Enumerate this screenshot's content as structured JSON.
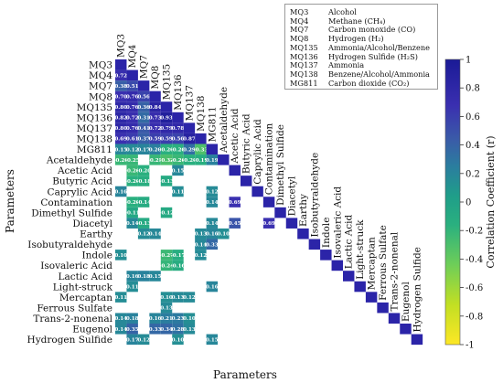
{
  "chart_data": {
    "type": "heatmap",
    "title": "",
    "xlabel": "Parameters",
    "ylabel": "Parameters",
    "parameters": [
      "MQ3",
      "MQ4",
      "MQ7",
      "MQ8",
      "MQ135",
      "MQ136",
      "MQ137",
      "MQ138",
      "MG811",
      "Acetaldehyde",
      "Acetic Acid",
      "Butyric Acid",
      "Caprylic Acid",
      "Contamination",
      "Dimethyl Sulfide",
      "Diacetyl",
      "Earthy",
      "Isobutyraldehyde",
      "Indole",
      "Isovaleric Acid",
      "Lactic Acid",
      "Light-struck",
      "Mercaptan",
      "Ferrous Sulfate",
      "Trans-2-nonenal",
      "Eugenol",
      "Hydrogen Sulfide"
    ],
    "cells": [
      {
        "row": 1,
        "col": 0,
        "value": 0.72
      },
      {
        "row": 2,
        "col": 0,
        "value": 0.38
      },
      {
        "row": 2,
        "col": 1,
        "value": 0.51
      },
      {
        "row": 3,
        "col": 0,
        "value": 0.7
      },
      {
        "row": 3,
        "col": 1,
        "value": 0.76
      },
      {
        "row": 3,
        "col": 2,
        "value": 0.56
      },
      {
        "row": 4,
        "col": 0,
        "value": 0.8
      },
      {
        "row": 4,
        "col": 1,
        "value": 0.76
      },
      {
        "row": 4,
        "col": 2,
        "value": 0.36
      },
      {
        "row": 4,
        "col": 3,
        "value": 0.84
      },
      {
        "row": 5,
        "col": 0,
        "value": 0.82
      },
      {
        "row": 5,
        "col": 1,
        "value": 0.72
      },
      {
        "row": 5,
        "col": 2,
        "value": 0.31
      },
      {
        "row": 5,
        "col": 3,
        "value": 0.73
      },
      {
        "row": 5,
        "col": 4,
        "value": 0.93
      },
      {
        "row": 6,
        "col": 0,
        "value": 0.8
      },
      {
        "row": 6,
        "col": 1,
        "value": 0.76
      },
      {
        "row": 6,
        "col": 2,
        "value": 0.41
      },
      {
        "row": 6,
        "col": 3,
        "value": 0.72
      },
      {
        "row": 6,
        "col": 4,
        "value": 0.79
      },
      {
        "row": 6,
        "col": 5,
        "value": 0.78
      },
      {
        "row": 7,
        "col": 0,
        "value": 0.69
      },
      {
        "row": 7,
        "col": 1,
        "value": 0.61
      },
      {
        "row": 7,
        "col": 2,
        "value": 0.37
      },
      {
        "row": 7,
        "col": 3,
        "value": 0.59
      },
      {
        "row": 7,
        "col": 4,
        "value": 0.59
      },
      {
        "row": 7,
        "col": 5,
        "value": 0.56
      },
      {
        "row": 7,
        "col": 6,
        "value": 0.87
      },
      {
        "row": 8,
        "col": 0,
        "value": 0.15
      },
      {
        "row": 8,
        "col": 1,
        "value": 0.12
      },
      {
        "row": 8,
        "col": 2,
        "value": 0.17
      },
      {
        "row": 8,
        "col": 3,
        "value": 0.2
      },
      {
        "row": 8,
        "col": 4,
        "value": -0.2
      },
      {
        "row": 8,
        "col": 5,
        "value": -0.2
      },
      {
        "row": 8,
        "col": 6,
        "value": 0.29
      },
      {
        "row": 8,
        "col": 7,
        "value": -0.33
      },
      {
        "row": 9,
        "col": 0,
        "value": -0.26
      },
      {
        "row": 9,
        "col": 1,
        "value": -0.25
      },
      {
        "row": 9,
        "col": 3,
        "value": -0.25
      },
      {
        "row": 9,
        "col": 4,
        "value": -0.32
      },
      {
        "row": 9,
        "col": 5,
        "value": -0.26
      },
      {
        "row": 9,
        "col": 6,
        "value": -0.2
      },
      {
        "row": 9,
        "col": 7,
        "value": -0.19
      },
      {
        "row": 9,
        "col": 8,
        "value": 0.19
      },
      {
        "row": 10,
        "col": 1,
        "value": -0.26
      },
      {
        "row": 10,
        "col": 2,
        "value": -0.2
      },
      {
        "row": 10,
        "col": 5,
        "value": 0.15
      },
      {
        "row": 11,
        "col": 1,
        "value": -0.2
      },
      {
        "row": 11,
        "col": 2,
        "value": -0.18
      },
      {
        "row": 11,
        "col": 4,
        "value": -0.13
      },
      {
        "row": 12,
        "col": 0,
        "value": 0.16
      },
      {
        "row": 12,
        "col": 5,
        "value": 0.11
      },
      {
        "row": 12,
        "col": 8,
        "value": 0.12
      },
      {
        "row": 13,
        "col": 1,
        "value": -0.2
      },
      {
        "row": 13,
        "col": 2,
        "value": -0.14
      },
      {
        "row": 13,
        "col": 8,
        "value": 0.14
      },
      {
        "row": 13,
        "col": 10,
        "value": 0.69
      },
      {
        "row": 14,
        "col": 1,
        "value": -0.11
      },
      {
        "row": 14,
        "col": 4,
        "value": -0.12
      },
      {
        "row": 15,
        "col": 1,
        "value": 0.14
      },
      {
        "row": 15,
        "col": 2,
        "value": -0.13
      },
      {
        "row": 15,
        "col": 8,
        "value": 0.14
      },
      {
        "row": 15,
        "col": 10,
        "value": 0.45
      },
      {
        "row": 15,
        "col": 13,
        "value": 0.69
      },
      {
        "row": 16,
        "col": 2,
        "value": 0.12
      },
      {
        "row": 16,
        "col": 3,
        "value": 0.14
      },
      {
        "row": 16,
        "col": 7,
        "value": 0.13
      },
      {
        "row": 16,
        "col": 8,
        "value": 0.16
      },
      {
        "row": 16,
        "col": 9,
        "value": 0.1
      },
      {
        "row": 17,
        "col": 7,
        "value": 0.14
      },
      {
        "row": 17,
        "col": 8,
        "value": 0.33
      },
      {
        "row": 18,
        "col": 0,
        "value": 0.1
      },
      {
        "row": 18,
        "col": 4,
        "value": -0.27
      },
      {
        "row": 18,
        "col": 5,
        "value": -0.17
      },
      {
        "row": 18,
        "col": 7,
        "value": 0.12
      },
      {
        "row": 19,
        "col": 4,
        "value": -0.24
      },
      {
        "row": 19,
        "col": 5,
        "value": -0.16
      },
      {
        "row": 20,
        "col": 1,
        "value": 0.16
      },
      {
        "row": 20,
        "col": 2,
        "value": 0.18
      },
      {
        "row": 20,
        "col": 3,
        "value": 0.15
      },
      {
        "row": 21,
        "col": 1,
        "value": 0.11
      },
      {
        "row": 21,
        "col": 8,
        "value": 0.16
      },
      {
        "row": 22,
        "col": 0,
        "value": 0.11
      },
      {
        "row": 22,
        "col": 4,
        "value": 0.1
      },
      {
        "row": 22,
        "col": 5,
        "value": 0.13
      },
      {
        "row": 22,
        "col": 6,
        "value": 0.12
      },
      {
        "row": 23,
        "col": 4,
        "value": 0.13
      },
      {
        "row": 24,
        "col": 0,
        "value": 0.14
      },
      {
        "row": 24,
        "col": 1,
        "value": 0.18
      },
      {
        "row": 24,
        "col": 3,
        "value": 0.16
      },
      {
        "row": 24,
        "col": 4,
        "value": 0.21
      },
      {
        "row": 24,
        "col": 5,
        "value": 0.23
      },
      {
        "row": 24,
        "col": 6,
        "value": 0.1
      },
      {
        "row": 25,
        "col": 0,
        "value": 0.14
      },
      {
        "row": 25,
        "col": 1,
        "value": 0.35
      },
      {
        "row": 25,
        "col": 3,
        "value": 0.33
      },
      {
        "row": 25,
        "col": 4,
        "value": 0.34
      },
      {
        "row": 25,
        "col": 5,
        "value": 0.28
      },
      {
        "row": 25,
        "col": 6,
        "value": 0.13
      },
      {
        "row": 26,
        "col": 1,
        "value": 0.17
      },
      {
        "row": 26,
        "col": 2,
        "value": 0.12
      },
      {
        "row": 26,
        "col": 5,
        "value": 0.1
      },
      {
        "row": 26,
        "col": 8,
        "value": 0.15
      }
    ],
    "colorbar": {
      "label": "Correlation Coefficient (r)",
      "ticks": [
        "1",
        "0.8",
        "0.6",
        "0.4",
        "0.2",
        "0",
        "-0.2",
        "-0.4",
        "-0.6",
        "-0.8",
        "-1"
      ],
      "colors": [
        "#fde725",
        "#90d743",
        "#35b779",
        "#21918c",
        "#31688e",
        "#443983",
        "#2c2ca0",
        "#1a1a96"
      ],
      "range": [
        -1,
        1
      ]
    },
    "legend": [
      {
        "code": "MQ3",
        "gas": "Alcohol"
      },
      {
        "code": "MQ4",
        "gas": "Methane (CH₄)"
      },
      {
        "code": "MQ7",
        "gas": "Carbon monoxide (CO)"
      },
      {
        "code": "MQ8",
        "gas": "Hydrogen (H₂)"
      },
      {
        "code": "MQ135",
        "gas": "Ammonia/Alcohol/Benzene"
      },
      {
        "code": "MQ136",
        "gas": "Hydrogen Sulfide (H₂S)"
      },
      {
        "code": "MQ137",
        "gas": "Ammonia"
      },
      {
        "code": "MQ138",
        "gas": "Benzene/Alcohol/Ammonia"
      },
      {
        "code": "MG811",
        "gas": "Carbon dioxide (CO₂)"
      }
    ]
  }
}
